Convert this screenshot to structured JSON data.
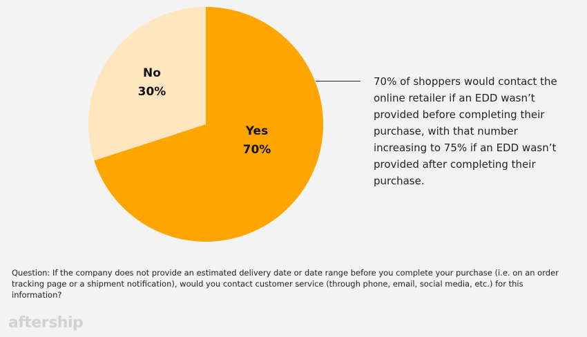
{
  "chart_data": {
    "type": "pie",
    "slices": [
      {
        "label": "Yes",
        "value": 70,
        "display": "70%",
        "color": "#FFA500"
      },
      {
        "label": "No",
        "value": 30,
        "display": "30%",
        "color": "#FFE6BF"
      }
    ],
    "annotation": "70% of shoppers would contact the online retailer if an EDD wasn’t provided before completing their purchase, with that number increasing to 75% if an EDD wasn’t provided after completing their purchase."
  },
  "question": "Question: If the company does not provide an estimated delivery date or date range before you complete your purchase (i.e. on an order tracking page or a shipment notification), would you contact customer service (through phone, email, social media, etc.) for this information?",
  "logo": "aftership"
}
